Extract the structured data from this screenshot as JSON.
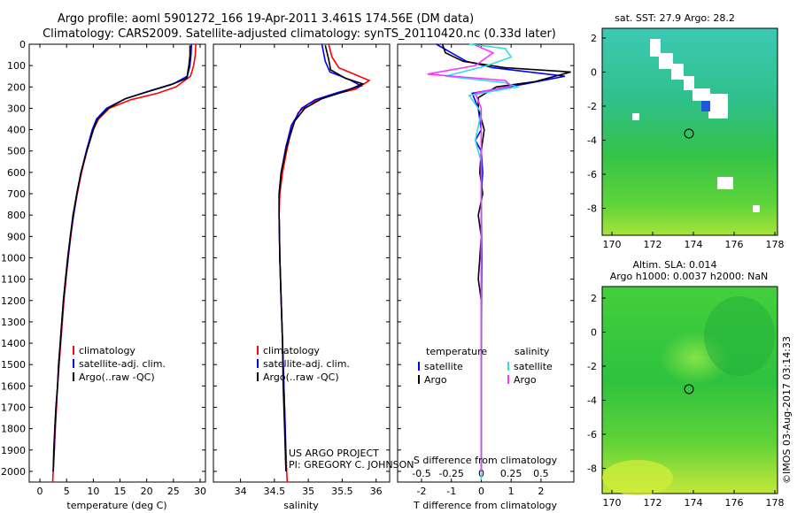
{
  "header": {
    "title_line1": "Argo profile: aoml 5901272_166 19-Apr-2011 3.461S 174.56E (DM data)",
    "title_line2": "Climatology: CARS2009. Satellite-adjusted climatology: synTS_20110420.nc (0.33d later)"
  },
  "colors": {
    "climatology": "#ff0000",
    "satellite": "#0000ff",
    "argo": "#000000",
    "sal_satellite": "#33dddd",
    "sal_argo": "#ff33ff",
    "axes": "#000000"
  },
  "credits": {
    "project": "US ARGO PROJECT",
    "pi": "PI: GREGORY C. JOHNSON",
    "imos": "©IMOS 03-Aug-2017 03:14:33"
  },
  "chart_data": [
    {
      "type": "line",
      "id": "temperature",
      "xlabel": "temperature (deg C)",
      "ylabel": "",
      "xlim": [
        -2,
        31
      ],
      "ylim": [
        2050,
        0
      ],
      "xticks": [
        0,
        5,
        10,
        15,
        20,
        25,
        30
      ],
      "xtick_labels": [
        "0",
        "5",
        "10",
        "15",
        "20",
        "25",
        "30"
      ],
      "yticks": [
        0,
        100,
        200,
        300,
        400,
        500,
        600,
        700,
        800,
        900,
        1000,
        1100,
        1200,
        1300,
        1400,
        1500,
        1600,
        1700,
        1800,
        1900,
        2000
      ],
      "ytick_labels": [
        "0",
        "100",
        "200",
        "300",
        "400",
        "500",
        "600",
        "700",
        "800",
        "900",
        "1000",
        "1100",
        "1200",
        "1300",
        "1400",
        "1500",
        "1600",
        "1700",
        "1800",
        "1900",
        "2000"
      ],
      "legend": [
        "climatology",
        "satellite-adj. clim.",
        "Argo(..raw -QC)"
      ],
      "legend_position": "lower-center",
      "series": [
        {
          "name": "climatology",
          "color_key": "climatology",
          "points": [
            [
              29.2,
              0
            ],
            [
              29.1,
              50
            ],
            [
              28.8,
              100
            ],
            [
              28.2,
              150
            ],
            [
              25.5,
              200
            ],
            [
              22,
              230
            ],
            [
              17,
              260
            ],
            [
              13,
              300
            ],
            [
              11,
              350
            ],
            [
              10,
              400
            ],
            [
              8.8,
              500
            ],
            [
              7.8,
              600
            ],
            [
              7,
              700
            ],
            [
              6.3,
              800
            ],
            [
              5.8,
              900
            ],
            [
              5.3,
              1000
            ],
            [
              4.9,
              1100
            ],
            [
              4.5,
              1200
            ],
            [
              4.2,
              1300
            ],
            [
              3.9,
              1400
            ],
            [
              3.6,
              1500
            ],
            [
              3.3,
              1600
            ],
            [
              3.1,
              1700
            ],
            [
              2.9,
              1800
            ],
            [
              2.7,
              1900
            ],
            [
              2.5,
              2000
            ],
            [
              2.4,
              2050
            ]
          ]
        },
        {
          "name": "satellite-adj. clim.",
          "color_key": "satellite",
          "points": [
            [
              28.4,
              0
            ],
            [
              28.3,
              50
            ],
            [
              28.1,
              100
            ],
            [
              27.6,
              150
            ],
            [
              25,
              185
            ],
            [
              21,
              215
            ],
            [
              16,
              255
            ],
            [
              12.5,
              300
            ],
            [
              10.6,
              350
            ],
            [
              9.8,
              400
            ],
            [
              8.7,
              500
            ],
            [
              7.7,
              600
            ],
            [
              6.9,
              700
            ],
            [
              6.3,
              800
            ],
            [
              5.7,
              900
            ],
            [
              5.3,
              1000
            ],
            [
              4.8,
              1100
            ],
            [
              4.4,
              1200
            ],
            [
              4.1,
              1300
            ],
            [
              3.8,
              1400
            ],
            [
              3.5,
              1500
            ],
            [
              3.3,
              1600
            ],
            [
              3,
              1700
            ],
            [
              2.8,
              1800
            ],
            [
              2.7,
              1900
            ],
            [
              2.5,
              2000
            ]
          ]
        },
        {
          "name": "Argo(..raw -QC)",
          "color_key": "argo",
          "points": [
            [
              28.1,
              5
            ],
            [
              28.1,
              50
            ],
            [
              27.9,
              100
            ],
            [
              27.5,
              160
            ],
            [
              24.5,
              190
            ],
            [
              20.5,
              220
            ],
            [
              16,
              255
            ],
            [
              12.8,
              300
            ],
            [
              10.8,
              350
            ],
            [
              10,
              400
            ],
            [
              8.8,
              500
            ],
            [
              7.7,
              600
            ],
            [
              6.9,
              700
            ],
            [
              6.2,
              800
            ],
            [
              5.7,
              900
            ],
            [
              5.2,
              1000
            ],
            [
              4.8,
              1100
            ],
            [
              4.4,
              1200
            ],
            [
              4.1,
              1300
            ],
            [
              3.8,
              1400
            ],
            [
              3.5,
              1500
            ],
            [
              3.3,
              1600
            ],
            [
              3,
              1700
            ],
            [
              2.8,
              1800
            ],
            [
              2.6,
              1900
            ],
            [
              2.5,
              2000
            ]
          ]
        }
      ]
    },
    {
      "type": "line",
      "id": "salinity",
      "xlabel": "salinity",
      "xlim": [
        33.6,
        36.2
      ],
      "ylim": [
        2050,
        0
      ],
      "xticks": [
        34,
        34.5,
        35,
        35.5,
        36
      ],
      "xtick_labels": [
        "34",
        "34.5",
        "35",
        "35.5",
        "36"
      ],
      "legend": [
        "climatology",
        "satellite-adj. clim.",
        "Argo(..raw -QC)"
      ],
      "legend_position": "lower-center",
      "series": [
        {
          "name": "climatology",
          "color_key": "climatology",
          "points": [
            [
              35.3,
              0
            ],
            [
              35.35,
              60
            ],
            [
              35.45,
              110
            ],
            [
              35.9,
              170
            ],
            [
              35.7,
              210
            ],
            [
              35.3,
              240
            ],
            [
              35.0,
              280
            ],
            [
              34.85,
              320
            ],
            [
              34.75,
              400
            ],
            [
              34.68,
              500
            ],
            [
              34.62,
              600
            ],
            [
              34.58,
              700
            ],
            [
              34.57,
              800
            ],
            [
              34.58,
              1000
            ],
            [
              34.6,
              1200
            ],
            [
              34.62,
              1400
            ],
            [
              34.64,
              1600
            ],
            [
              34.66,
              1800
            ],
            [
              34.68,
              2000
            ],
            [
              34.69,
              2050
            ]
          ]
        },
        {
          "name": "satellite-adj. clim.",
          "color_key": "satellite",
          "points": [
            [
              35.2,
              0
            ],
            [
              35.25,
              80
            ],
            [
              35.32,
              130
            ],
            [
              35.6,
              165
            ],
            [
              35.78,
              195
            ],
            [
              35.45,
              225
            ],
            [
              35.1,
              260
            ],
            [
              34.9,
              300
            ],
            [
              34.75,
              380
            ],
            [
              34.67,
              480
            ],
            [
              34.6,
              600
            ],
            [
              34.57,
              700
            ],
            [
              34.57,
              800
            ],
            [
              34.58,
              1000
            ],
            [
              34.6,
              1200
            ],
            [
              34.62,
              1400
            ],
            [
              34.64,
              1600
            ],
            [
              34.66,
              1800
            ],
            [
              34.67,
              2000
            ]
          ]
        },
        {
          "name": "Argo(..raw -QC)",
          "color_key": "argo",
          "points": [
            [
              35.25,
              5
            ],
            [
              35.3,
              70
            ],
            [
              35.33,
              120
            ],
            [
              35.55,
              160
            ],
            [
              35.8,
              185
            ],
            [
              35.55,
              220
            ],
            [
              35.2,
              255
            ],
            [
              34.95,
              300
            ],
            [
              34.8,
              360
            ],
            [
              34.68,
              480
            ],
            [
              34.6,
              600
            ],
            [
              34.57,
              700
            ],
            [
              34.57,
              800
            ],
            [
              34.58,
              1000
            ],
            [
              34.6,
              1200
            ],
            [
              34.62,
              1400
            ],
            [
              34.63,
              1600
            ],
            [
              34.65,
              1800
            ],
            [
              34.67,
              2000
            ]
          ]
        }
      ]
    },
    {
      "type": "line",
      "id": "differences",
      "xlabel": "T difference from climatology",
      "xlabel_top": "S difference from climatology",
      "xlim": [
        -2.8,
        3.1
      ],
      "ylim": [
        2050,
        0
      ],
      "xticks": [
        -2,
        -1,
        0,
        1,
        2
      ],
      "xtick_labels": [
        "-2",
        "-1",
        "0",
        "1",
        "2"
      ],
      "s_ticks": [
        -0.5,
        -0.25,
        0,
        0.25,
        0.5
      ],
      "s_tick_labels": [
        "-0.5",
        "-0.25",
        "0",
        "0.25",
        "0.5"
      ],
      "s_scale": 4,
      "legend_temperature_title": "temperature",
      "legend_salinity_title": "salinity",
      "legend_temperature": [
        "satellite",
        "Argo"
      ],
      "legend_salinity": [
        "satellite",
        "Argo"
      ],
      "series": [
        {
          "name": "T satellite",
          "color_key": "satellite",
          "points": [
            [
              -1.5,
              0
            ],
            [
              -1.0,
              40
            ],
            [
              -0.5,
              80
            ],
            [
              0.4,
              110
            ],
            [
              2.8,
              150
            ],
            [
              1.5,
              185
            ],
            [
              -0.3,
              230
            ],
            [
              -0.1,
              300
            ],
            [
              0,
              400
            ],
            [
              -0.2,
              450
            ],
            [
              0,
              500
            ],
            [
              0.05,
              600
            ],
            [
              0,
              700
            ],
            [
              0.02,
              1000
            ],
            [
              0,
              1500
            ],
            [
              0,
              2000
            ]
          ]
        },
        {
          "name": "T Argo",
          "color_key": "argo",
          "points": [
            [
              -1.3,
              0
            ],
            [
              -1.2,
              40
            ],
            [
              -0.6,
              80
            ],
            [
              0.8,
              110
            ],
            [
              3,
              130
            ],
            [
              1.8,
              175
            ],
            [
              0.5,
              200
            ],
            [
              -0.1,
              250
            ],
            [
              -0.1,
              300
            ],
            [
              0.1,
              400
            ],
            [
              0,
              500
            ],
            [
              -0.05,
              600
            ],
            [
              0.05,
              700
            ],
            [
              -0.1,
              800
            ],
            [
              0,
              900
            ],
            [
              -0.05,
              1000
            ],
            [
              -0.1,
              1100
            ],
            [
              -0.05,
              1150
            ],
            [
              0,
              1200
            ],
            [
              0,
              1500
            ],
            [
              0,
              2000
            ]
          ]
        },
        {
          "name": "S satellite",
          "color_key": "sal_satellite",
          "points": [
            [
              -0.1,
              0
            ],
            [
              0.2,
              20
            ],
            [
              0.25,
              60
            ],
            [
              0.05,
              100
            ],
            [
              -0.3,
              150
            ],
            [
              0.2,
              180
            ],
            [
              0.3,
              200
            ],
            [
              -0.1,
              240
            ],
            [
              0,
              320
            ],
            [
              -0.05,
              450
            ],
            [
              0,
              550
            ],
            [
              0,
              800
            ],
            [
              0,
              1200
            ],
            [
              0,
              1600
            ],
            [
              0,
              2040
            ]
          ]
        },
        {
          "name": "S Argo",
          "color_key": "sal_argo",
          "points": [
            [
              -0.05,
              5
            ],
            [
              0.1,
              40
            ],
            [
              -0.05,
              100
            ],
            [
              -0.45,
              140
            ],
            [
              0.2,
              170
            ],
            [
              0.25,
              195
            ],
            [
              -0.05,
              230
            ],
            [
              0,
              300
            ],
            [
              0,
              500
            ],
            [
              0,
              900
            ],
            [
              0,
              2000
            ]
          ]
        }
      ]
    }
  ],
  "maps": [
    {
      "id": "sst",
      "title": "sat. SST: 27.9 Argo: 28.2",
      "xticks": [
        "170",
        "172",
        "174",
        "176",
        "178"
      ],
      "yticks": [
        "2",
        "0",
        "-2",
        "-4",
        "-6",
        "-8"
      ]
    },
    {
      "id": "sla",
      "title_line1": "Altim. SLA: 0.014",
      "title_line2": "Argo h1000: 0.0037 h2000: NaN",
      "xticks": [
        "170",
        "172",
        "174",
        "176",
        "178"
      ],
      "yticks": [
        "2",
        "0",
        "-2",
        "-4",
        "-6",
        "-8"
      ]
    }
  ]
}
